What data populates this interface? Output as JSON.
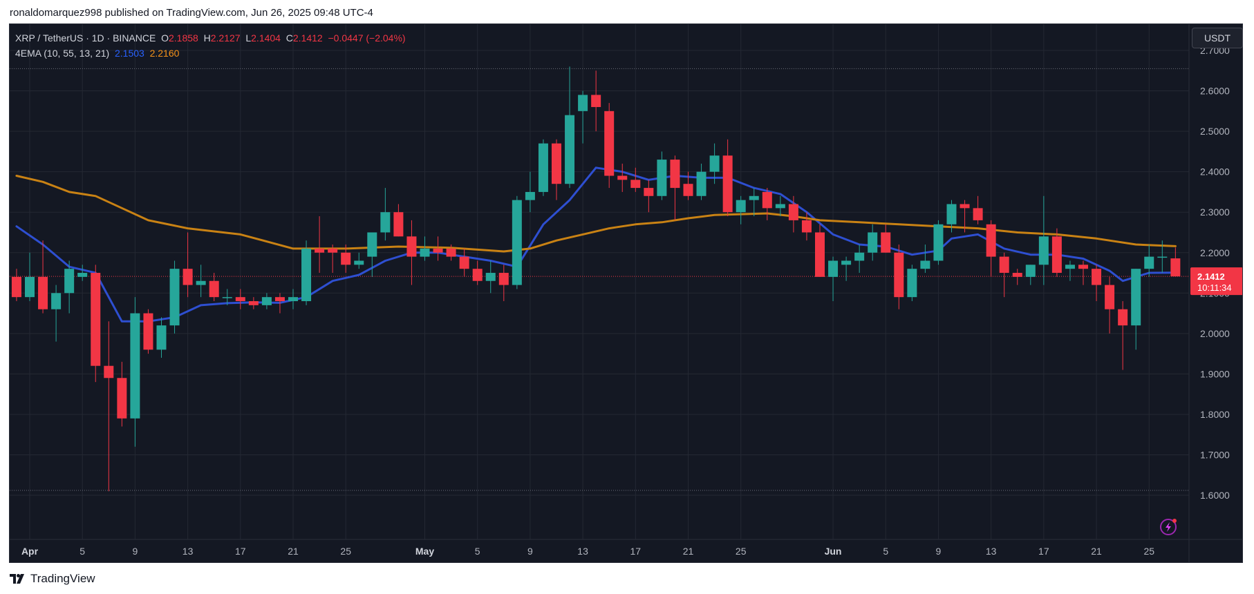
{
  "header": {
    "published": "ronaldomarquez998 published on TradingView.com, Jun 26, 2025 09:48 UTC-4"
  },
  "legend": {
    "symbol": "XRP / TetherUS · 1D · BINANCE",
    "o_label": "O",
    "o_value": "2.1858",
    "h_label": "H",
    "h_value": "2.2127",
    "l_label": "L",
    "l_value": "2.1404",
    "c_label": "C",
    "c_value": "2.1412",
    "change": "−0.0447 (−2.04%)",
    "indicator": "4EMA (10, 55, 13, 21)",
    "ema_fast_value": "2.1503",
    "ema_slow_value": "2.2160"
  },
  "currency_button": "USDT",
  "last_price_label": {
    "price": "2.1412",
    "countdown": "10:11:34"
  },
  "brand": {
    "name": "TradingView"
  },
  "colors": {
    "background": "#141823",
    "up": "#26a69a",
    "down": "#f23645",
    "ema_fast": "#2e4fd1",
    "ema_slow": "#c98214",
    "grid": "#242833",
    "axis_text": "#b2b5be"
  },
  "chart_data": {
    "type": "candlestick",
    "title": "XRP / TetherUS · 1D · BINANCE",
    "ylim": [
      1.5,
      2.74
    ],
    "y_ticks": [
      1.6,
      1.7,
      1.8,
      1.9,
      2.0,
      2.1,
      2.2,
      2.3,
      2.4,
      2.5,
      2.6,
      2.7
    ],
    "y_tick_labels": [
      "1.6000",
      "1.7000",
      "1.8000",
      "1.9000",
      "2.0000",
      "2.1000",
      "2.2000",
      "2.3000",
      "2.4000",
      "2.5000",
      "2.6000",
      "2.7000"
    ],
    "x_ticks": [
      {
        "label": "Apr",
        "date": "2025-04-01",
        "bold": true
      },
      {
        "label": "5",
        "date": "2025-04-05"
      },
      {
        "label": "9",
        "date": "2025-04-09"
      },
      {
        "label": "13",
        "date": "2025-04-13"
      },
      {
        "label": "17",
        "date": "2025-04-17"
      },
      {
        "label": "21",
        "date": "2025-04-21"
      },
      {
        "label": "25",
        "date": "2025-04-25"
      },
      {
        "label": "May",
        "date": "2025-05-01",
        "bold": true
      },
      {
        "label": "5",
        "date": "2025-05-05"
      },
      {
        "label": "9",
        "date": "2025-05-09"
      },
      {
        "label": "13",
        "date": "2025-05-13"
      },
      {
        "label": "17",
        "date": "2025-05-17"
      },
      {
        "label": "21",
        "date": "2025-05-21"
      },
      {
        "label": "25",
        "date": "2025-05-25"
      },
      {
        "label": "Jun",
        "date": "2025-06-01",
        "bold": true
      },
      {
        "label": "5",
        "date": "2025-06-05"
      },
      {
        "label": "9",
        "date": "2025-06-09"
      },
      {
        "label": "13",
        "date": "2025-06-13"
      },
      {
        "label": "17",
        "date": "2025-06-17"
      },
      {
        "label": "21",
        "date": "2025-06-21"
      },
      {
        "label": "25",
        "date": "2025-06-25"
      }
    ],
    "dotted_levels": [
      2.655,
      1.612
    ],
    "last_close": 2.1412,
    "columns": [
      "date",
      "open",
      "high",
      "low",
      "close"
    ],
    "candles": [
      [
        "2025-03-31",
        2.14,
        2.16,
        2.08,
        2.09
      ],
      [
        "2025-04-01",
        2.09,
        2.2,
        2.08,
        2.14
      ],
      [
        "2025-04-02",
        2.14,
        2.23,
        2.05,
        2.06
      ],
      [
        "2025-04-03",
        2.06,
        2.12,
        1.98,
        2.1
      ],
      [
        "2025-04-04",
        2.1,
        2.18,
        2.05,
        2.16
      ],
      [
        "2025-04-05",
        2.14,
        2.17,
        2.13,
        2.15
      ],
      [
        "2025-04-06",
        2.15,
        2.17,
        1.88,
        1.92
      ],
      [
        "2025-04-07",
        1.92,
        2.03,
        1.61,
        1.89
      ],
      [
        "2025-04-08",
        1.89,
        1.93,
        1.77,
        1.79
      ],
      [
        "2025-04-09",
        1.79,
        2.09,
        1.72,
        2.05
      ],
      [
        "2025-04-10",
        2.05,
        2.06,
        1.95,
        1.96
      ],
      [
        "2025-04-11",
        1.96,
        2.04,
        1.94,
        2.02
      ],
      [
        "2025-04-12",
        2.02,
        2.18,
        2.0,
        2.16
      ],
      [
        "2025-04-13",
        2.16,
        2.25,
        2.09,
        2.12
      ],
      [
        "2025-04-14",
        2.12,
        2.17,
        2.09,
        2.13
      ],
      [
        "2025-04-15",
        2.13,
        2.15,
        2.08,
        2.09
      ],
      [
        "2025-04-16",
        2.09,
        2.11,
        2.07,
        2.09
      ],
      [
        "2025-04-17",
        2.09,
        2.11,
        2.06,
        2.08
      ],
      [
        "2025-04-18",
        2.08,
        2.09,
        2.06,
        2.07
      ],
      [
        "2025-04-19",
        2.07,
        2.1,
        2.06,
        2.09
      ],
      [
        "2025-04-20",
        2.09,
        2.1,
        2.05,
        2.08
      ],
      [
        "2025-04-21",
        2.08,
        2.11,
        2.06,
        2.09
      ],
      [
        "2025-04-22",
        2.08,
        2.23,
        2.07,
        2.21
      ],
      [
        "2025-04-23",
        2.21,
        2.29,
        2.15,
        2.2
      ],
      [
        "2025-04-24",
        2.21,
        2.22,
        2.15,
        2.2
      ],
      [
        "2025-04-25",
        2.2,
        2.22,
        2.15,
        2.17
      ],
      [
        "2025-04-26",
        2.17,
        2.2,
        2.16,
        2.18
      ],
      [
        "2025-04-27",
        2.19,
        2.25,
        2.14,
        2.25
      ],
      [
        "2025-04-28",
        2.25,
        2.36,
        2.23,
        2.3
      ],
      [
        "2025-04-29",
        2.3,
        2.32,
        2.24,
        2.24
      ],
      [
        "2025-04-30",
        2.24,
        2.28,
        2.12,
        2.19
      ],
      [
        "2025-05-01",
        2.19,
        2.24,
        2.18,
        2.21
      ],
      [
        "2025-05-02",
        2.21,
        2.24,
        2.18,
        2.2
      ],
      [
        "2025-05-03",
        2.21,
        2.22,
        2.18,
        2.19
      ],
      [
        "2025-05-04",
        2.19,
        2.21,
        2.14,
        2.16
      ],
      [
        "2025-05-05",
        2.16,
        2.18,
        2.12,
        2.13
      ],
      [
        "2025-05-06",
        2.13,
        2.18,
        2.1,
        2.15
      ],
      [
        "2025-05-07",
        2.15,
        2.17,
        2.08,
        2.12
      ],
      [
        "2025-05-08",
        2.12,
        2.34,
        2.11,
        2.33
      ],
      [
        "2025-05-09",
        2.33,
        2.4,
        2.3,
        2.35
      ],
      [
        "2025-05-10",
        2.35,
        2.48,
        2.34,
        2.47
      ],
      [
        "2025-05-11",
        2.47,
        2.48,
        2.33,
        2.37
      ],
      [
        "2025-05-12",
        2.37,
        2.66,
        2.36,
        2.54
      ],
      [
        "2025-05-13",
        2.55,
        2.6,
        2.47,
        2.59
      ],
      [
        "2025-05-14",
        2.59,
        2.65,
        2.5,
        2.56
      ],
      [
        "2025-05-15",
        2.55,
        2.57,
        2.36,
        2.39
      ],
      [
        "2025-05-16",
        2.39,
        2.42,
        2.35,
        2.38
      ],
      [
        "2025-05-17",
        2.38,
        2.41,
        2.35,
        2.36
      ],
      [
        "2025-05-18",
        2.36,
        2.38,
        2.3,
        2.34
      ],
      [
        "2025-05-19",
        2.34,
        2.45,
        2.33,
        2.43
      ],
      [
        "2025-05-20",
        2.43,
        2.44,
        2.28,
        2.36
      ],
      [
        "2025-05-21",
        2.37,
        2.4,
        2.33,
        2.34
      ],
      [
        "2025-05-22",
        2.34,
        2.42,
        2.33,
        2.4
      ],
      [
        "2025-05-23",
        2.4,
        2.47,
        2.37,
        2.44
      ],
      [
        "2025-05-24",
        2.44,
        2.48,
        2.29,
        2.3
      ],
      [
        "2025-05-25",
        2.3,
        2.34,
        2.27,
        2.33
      ],
      [
        "2025-05-26",
        2.33,
        2.36,
        2.29,
        2.34
      ],
      [
        "2025-05-27",
        2.35,
        2.36,
        2.28,
        2.31
      ],
      [
        "2025-05-28",
        2.31,
        2.34,
        2.29,
        2.32
      ],
      [
        "2025-05-29",
        2.32,
        2.34,
        2.25,
        2.28
      ],
      [
        "2025-05-30",
        2.28,
        2.3,
        2.23,
        2.25
      ],
      [
        "2025-05-31",
        2.25,
        2.27,
        2.14,
        2.14
      ],
      [
        "2025-06-01",
        2.14,
        2.19,
        2.08,
        2.18
      ],
      [
        "2025-06-02",
        2.17,
        2.19,
        2.13,
        2.18
      ],
      [
        "2025-06-03",
        2.18,
        2.22,
        2.15,
        2.2
      ],
      [
        "2025-06-04",
        2.2,
        2.27,
        2.18,
        2.25
      ],
      [
        "2025-06-05",
        2.25,
        2.27,
        2.2,
        2.2
      ],
      [
        "2025-06-06",
        2.2,
        2.22,
        2.06,
        2.09
      ],
      [
        "2025-06-07",
        2.09,
        2.17,
        2.08,
        2.16
      ],
      [
        "2025-06-08",
        2.16,
        2.22,
        2.15,
        2.18
      ],
      [
        "2025-06-09",
        2.18,
        2.28,
        2.17,
        2.27
      ],
      [
        "2025-06-10",
        2.27,
        2.33,
        2.25,
        2.32
      ],
      [
        "2025-06-11",
        2.32,
        2.33,
        2.25,
        2.31
      ],
      [
        "2025-06-12",
        2.31,
        2.34,
        2.27,
        2.28
      ],
      [
        "2025-06-13",
        2.27,
        2.28,
        2.14,
        2.19
      ],
      [
        "2025-06-14",
        2.19,
        2.2,
        2.09,
        2.15
      ],
      [
        "2025-06-15",
        2.15,
        2.16,
        2.12,
        2.14
      ],
      [
        "2025-06-16",
        2.14,
        2.17,
        2.12,
        2.17
      ],
      [
        "2025-06-17",
        2.17,
        2.34,
        2.12,
        2.24
      ],
      [
        "2025-06-18",
        2.24,
        2.26,
        2.14,
        2.15
      ],
      [
        "2025-06-19",
        2.16,
        2.18,
        2.13,
        2.17
      ],
      [
        "2025-06-20",
        2.17,
        2.18,
        2.12,
        2.16
      ],
      [
        "2025-06-21",
        2.16,
        2.17,
        2.08,
        2.12
      ],
      [
        "2025-06-22",
        2.12,
        2.14,
        2.0,
        2.06
      ],
      [
        "2025-06-23",
        2.06,
        2.08,
        1.91,
        2.02
      ],
      [
        "2025-06-24",
        2.02,
        2.16,
        1.96,
        2.16
      ],
      [
        "2025-06-25",
        2.16,
        2.22,
        2.14,
        2.19
      ],
      [
        "2025-06-26",
        2.19,
        2.23,
        2.15,
        2.19
      ],
      [
        "2025-06-27",
        2.1858,
        2.2127,
        2.1404,
        2.1412
      ]
    ],
    "series": [
      {
        "name": "EMA 13",
        "color": "#2e4fd1",
        "points": [
          [
            "2025-03-31",
            2.265
          ],
          [
            "2025-04-02",
            2.22
          ],
          [
            "2025-04-04",
            2.165
          ],
          [
            "2025-04-06",
            2.15
          ],
          [
            "2025-04-08",
            2.03
          ],
          [
            "2025-04-10",
            2.03
          ],
          [
            "2025-04-12",
            2.04
          ],
          [
            "2025-04-14",
            2.07
          ],
          [
            "2025-04-16",
            2.075
          ],
          [
            "2025-04-18",
            2.077
          ],
          [
            "2025-04-20",
            2.076
          ],
          [
            "2025-04-22",
            2.09
          ],
          [
            "2025-04-24",
            2.13
          ],
          [
            "2025-04-26",
            2.145
          ],
          [
            "2025-04-28",
            2.18
          ],
          [
            "2025-04-30",
            2.2
          ],
          [
            "2025-05-02",
            2.2
          ],
          [
            "2025-05-04",
            2.19
          ],
          [
            "2025-05-06",
            2.18
          ],
          [
            "2025-05-08",
            2.165
          ],
          [
            "2025-05-10",
            2.27
          ],
          [
            "2025-05-12",
            2.33
          ],
          [
            "2025-05-13",
            2.37
          ],
          [
            "2025-05-14",
            2.41
          ],
          [
            "2025-05-16",
            2.4
          ],
          [
            "2025-05-18",
            2.38
          ],
          [
            "2025-05-20",
            2.39
          ],
          [
            "2025-05-22",
            2.385
          ],
          [
            "2025-05-24",
            2.385
          ],
          [
            "2025-05-26",
            2.36
          ],
          [
            "2025-05-28",
            2.345
          ],
          [
            "2025-05-30",
            2.3
          ],
          [
            "2025-06-01",
            2.245
          ],
          [
            "2025-06-03",
            2.22
          ],
          [
            "2025-06-05",
            2.215
          ],
          [
            "2025-06-07",
            2.195
          ],
          [
            "2025-06-09",
            2.205
          ],
          [
            "2025-06-10",
            2.235
          ],
          [
            "2025-06-12",
            2.245
          ],
          [
            "2025-06-14",
            2.21
          ],
          [
            "2025-06-16",
            2.195
          ],
          [
            "2025-06-18",
            2.195
          ],
          [
            "2025-06-20",
            2.185
          ],
          [
            "2025-06-22",
            2.155
          ],
          [
            "2025-06-23",
            2.13
          ],
          [
            "2025-06-25",
            2.15
          ],
          [
            "2025-06-27",
            2.1503
          ]
        ]
      },
      {
        "name": "EMA 55",
        "color": "#c98214",
        "points": [
          [
            "2025-03-31",
            2.39
          ],
          [
            "2025-04-02",
            2.375
          ],
          [
            "2025-04-04",
            2.35
          ],
          [
            "2025-04-06",
            2.34
          ],
          [
            "2025-04-08",
            2.31
          ],
          [
            "2025-04-10",
            2.28
          ],
          [
            "2025-04-13",
            2.26
          ],
          [
            "2025-04-17",
            2.245
          ],
          [
            "2025-04-21",
            2.21
          ],
          [
            "2025-04-25",
            2.21
          ],
          [
            "2025-04-29",
            2.215
          ],
          [
            "2025-05-03",
            2.212
          ],
          [
            "2025-05-07",
            2.203
          ],
          [
            "2025-05-09",
            2.21
          ],
          [
            "2025-05-11",
            2.23
          ],
          [
            "2025-05-13",
            2.245
          ],
          [
            "2025-05-15",
            2.26
          ],
          [
            "2025-05-17",
            2.27
          ],
          [
            "2025-05-19",
            2.275
          ],
          [
            "2025-05-21",
            2.285
          ],
          [
            "2025-05-23",
            2.293
          ],
          [
            "2025-05-25",
            2.295
          ],
          [
            "2025-05-27",
            2.297
          ],
          [
            "2025-05-29",
            2.29
          ],
          [
            "2025-05-31",
            2.28
          ],
          [
            "2025-06-03",
            2.275
          ],
          [
            "2025-06-06",
            2.27
          ],
          [
            "2025-06-09",
            2.265
          ],
          [
            "2025-06-12",
            2.26
          ],
          [
            "2025-06-15",
            2.25
          ],
          [
            "2025-06-18",
            2.245
          ],
          [
            "2025-06-21",
            2.235
          ],
          [
            "2025-06-24",
            2.22
          ],
          [
            "2025-06-27",
            2.216
          ]
        ]
      }
    ]
  }
}
